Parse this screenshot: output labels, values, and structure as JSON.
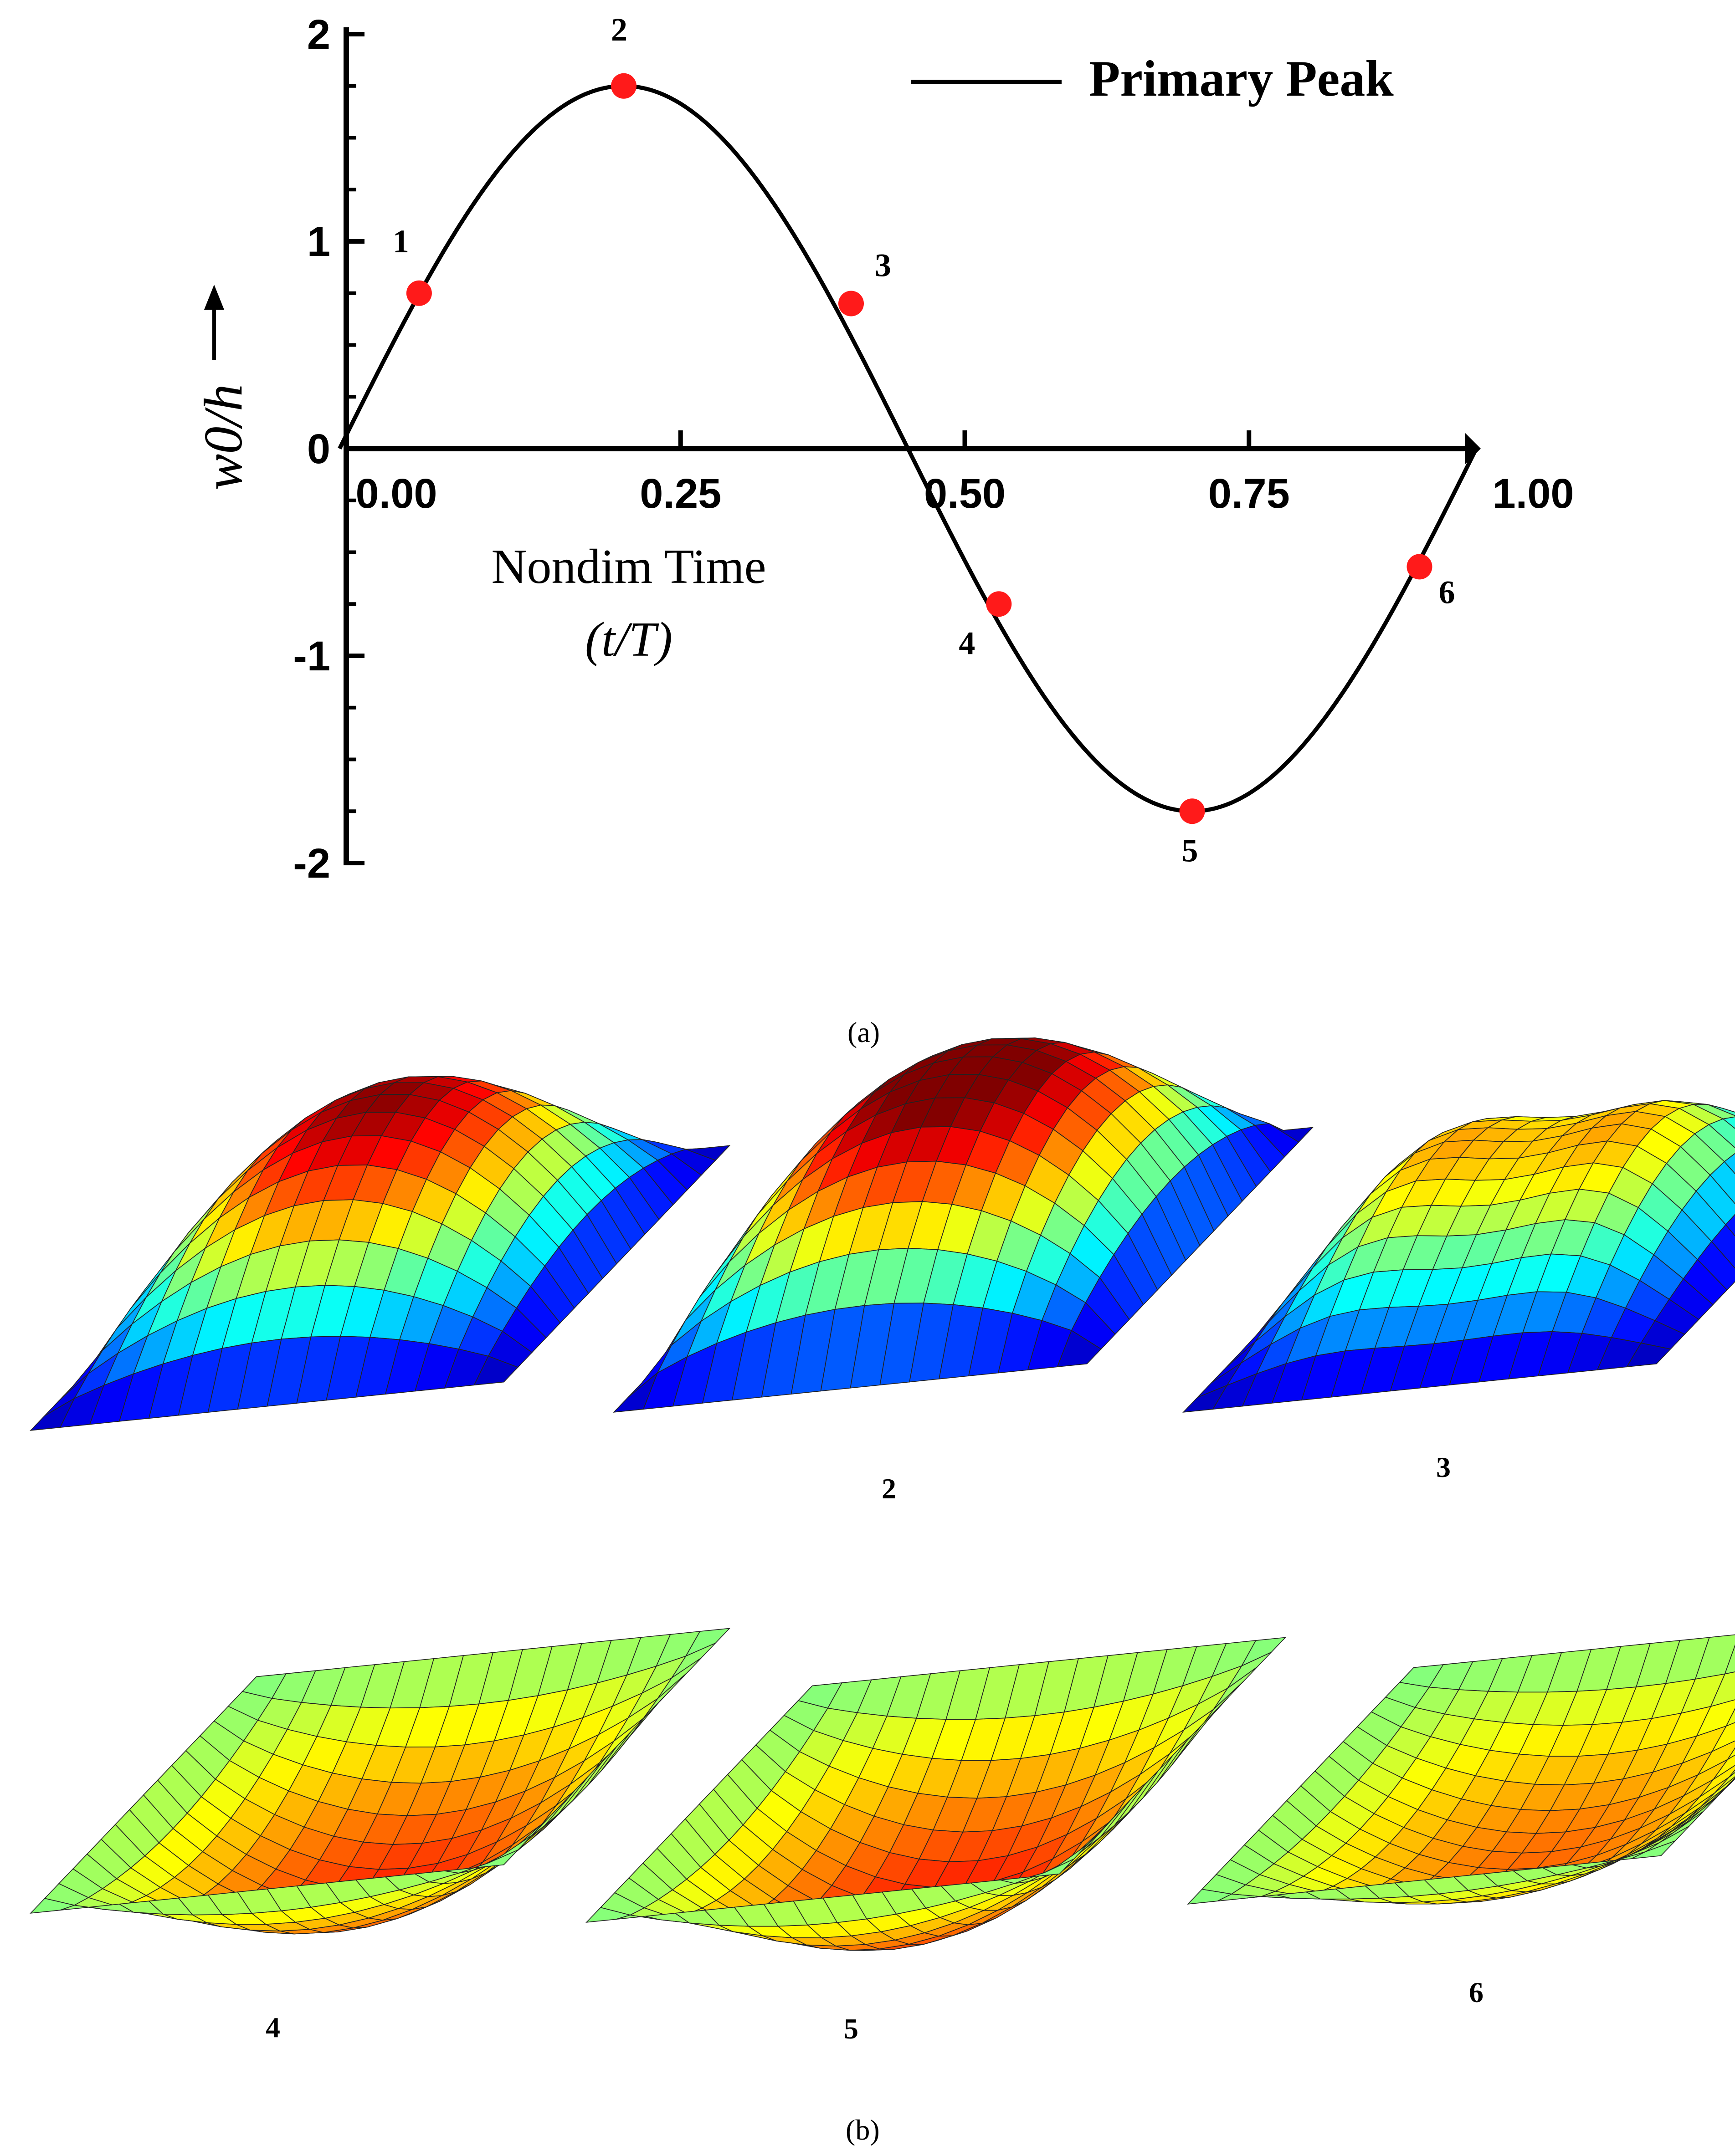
{
  "chart_data": {
    "type": "line",
    "series": [
      {
        "name": "Primary Peak",
        "color": "#000000",
        "function": "1.75*sin(2*pi*(t+0.05))",
        "x_range": [
          -0.05,
          0.95
        ]
      }
    ],
    "marked_points": [
      {
        "label": "1",
        "x": 0.02,
        "y": 0.75
      },
      {
        "label": "2",
        "x": 0.2,
        "y": 1.75
      },
      {
        "label": "3",
        "x": 0.4,
        "y": 0.7
      },
      {
        "label": "4",
        "x": 0.53,
        "y": -0.75
      },
      {
        "label": "5",
        "x": 0.7,
        "y": -1.75
      },
      {
        "label": "6",
        "x": 0.9,
        "y": -0.57
      }
    ],
    "marker_color": "#ff1a1a",
    "xlabel": "Nondim Time",
    "xlabel_sub": "(t/T)",
    "ylabel": "w0/h",
    "xlim": [
      -0.05,
      0.95
    ],
    "ylim": [
      -2,
      2
    ],
    "xticks": [
      {
        "v": 0.0,
        "label": "0.00"
      },
      {
        "v": 0.25,
        "label": "0.25"
      },
      {
        "v": 0.5,
        "label": "0.50"
      },
      {
        "v": 0.75,
        "label": "0.75"
      },
      {
        "v": 1.0,
        "label": "1.00"
      }
    ],
    "yticks": [
      {
        "v": 2,
        "label": "2"
      },
      {
        "v": 1,
        "label": "1"
      },
      {
        "v": 0,
        "label": "0"
      },
      {
        "v": -1,
        "label": "-1"
      },
      {
        "v": -2,
        "label": "-2"
      }
    ],
    "legend": {
      "label": "Primary Peak",
      "placement": "top-right"
    }
  },
  "captions": {
    "a": "(a)",
    "b": "(b)"
  },
  "shape_labels": [
    "2",
    "3",
    "4",
    "5",
    "6"
  ],
  "colors": {
    "colormap": [
      "#00008f",
      "#0000ff",
      "#0080ff",
      "#00ffff",
      "#80ff80",
      "#ffff00",
      "#ff8000",
      "#ff0000",
      "#800000"
    ]
  }
}
